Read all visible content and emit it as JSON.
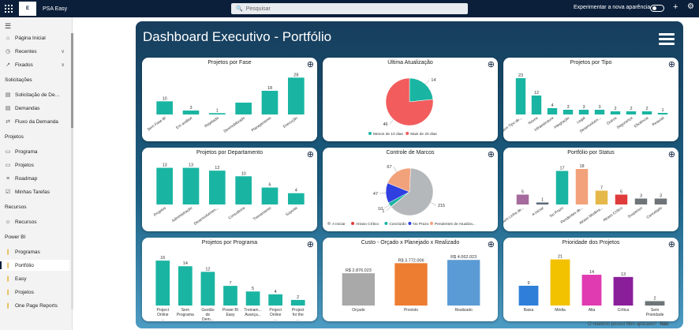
{
  "topbar": {
    "app_name": "PSA Easy",
    "search_placeholder": "Pesquisar",
    "experiment_label": "Experimentar a nova aparência"
  },
  "sidebar": {
    "items_top": [
      {
        "label": "Página Inicial",
        "icon": "home-icon"
      },
      {
        "label": "Recentes",
        "icon": "clock-icon",
        "chevron": true
      },
      {
        "label": "Fixados",
        "icon": "pin-icon",
        "chevron": true
      }
    ],
    "sections": [
      {
        "title": "Solicitações",
        "items": [
          {
            "label": "Solicitação de De...",
            "icon": "doc-icon"
          },
          {
            "label": "Demandas",
            "icon": "doc-icon"
          },
          {
            "label": "Fluxo da Demanda",
            "icon": "flow-icon"
          }
        ]
      },
      {
        "title": "Projetos",
        "items": [
          {
            "label": "Programa",
            "icon": "folder-icon"
          },
          {
            "label": "Projetos",
            "icon": "folder-icon"
          },
          {
            "label": "Roadmap",
            "icon": "roadmap-icon"
          },
          {
            "label": "Minhas Tarefas",
            "icon": "task-icon"
          }
        ]
      },
      {
        "title": "Recursos",
        "items": [
          {
            "label": "Recursos",
            "icon": "people-icon"
          }
        ]
      },
      {
        "title": "Power BI",
        "items": [
          {
            "label": "Programas",
            "icon": "powerbi-icon"
          },
          {
            "label": "Portfólio",
            "icon": "powerbi-icon",
            "selected": true
          },
          {
            "label": "Easy",
            "icon": "powerbi-icon"
          },
          {
            "label": "Projetos",
            "icon": "powerbi-icon"
          },
          {
            "label": "One Page Reports",
            "icon": "powerbi-icon"
          }
        ]
      }
    ]
  },
  "dashboard": {
    "title": "Dashboard Executivo - Portfólio"
  },
  "footer": {
    "question": "O relatório possui filtro aplicado?",
    "answer": "Não"
  },
  "charts": [
    {
      "id": "fase",
      "type": "bar",
      "title": "Projetos por Fase",
      "color": "#1ab5a2",
      "categories": [
        "Sem Fase BI",
        "Em análise",
        "Rejeitada",
        "Desmobilizado",
        "Planejamento",
        "Execução"
      ],
      "values": [
        10,
        3,
        1,
        9,
        18,
        28
      ],
      "show_value": [
        true,
        true,
        true,
        false,
        true,
        true
      ],
      "ymax": 30
    },
    {
      "id": "atualizacao",
      "type": "pie",
      "title": "Última Atualização",
      "slices": [
        {
          "label": "Menos de 10 dias",
          "value": 14,
          "color": "#1ab5a2"
        },
        {
          "label": "Mais de 20 dias",
          "value": 46,
          "color": "#f25c5c"
        }
      ]
    },
    {
      "id": "tipo",
      "type": "bar",
      "title": "Projetos por Tipo",
      "color": "#1ab5a2",
      "categories": [
        "Sem Tipo de...",
        "Novos",
        "Infraestrutura",
        "Integração",
        "Legal",
        "Desenvolvim...",
        "Outros",
        "Segurança",
        "Eficiência",
        "Pessoal"
      ],
      "values": [
        23,
        12,
        4,
        3,
        3,
        3,
        2,
        2,
        2,
        1
      ],
      "ymax": 25
    },
    {
      "id": "departamento",
      "type": "bar",
      "title": "Projetos por Departamento",
      "color": "#1ab5a2",
      "categories": [
        "Projetos",
        "Administração",
        "Desenvolvimen...",
        "Consultoria",
        "Treinamento",
        "Suporte"
      ],
      "values": [
        13,
        13,
        12,
        10,
        6,
        4
      ],
      "ymax": 14
    },
    {
      "id": "marcos",
      "type": "pie",
      "title": "Controle de Marcos",
      "slices": [
        {
          "label": "A iniciar",
          "value": 215,
          "color": "#b5b8bb"
        },
        {
          "label": "Atraso Crítico",
          "value": 1,
          "color": "#e03b3b"
        },
        {
          "label": "Concluído",
          "value": 10,
          "color": "#1ab5a2"
        },
        {
          "label": "No Prazo",
          "value": 47,
          "color": "#2f3fe0"
        },
        {
          "label": "Pendentes de Atualiza...",
          "value": 67,
          "color": "#f2a27a"
        }
      ]
    },
    {
      "id": "status",
      "type": "bar",
      "title": "Portfólio por Status",
      "multicolor": true,
      "categories": [
        "Sem Linha de...",
        "A iniciar",
        "No Prazo",
        "Pendentes de...",
        "Atraso Modera...",
        "Atraso Crítico",
        "Suspenso",
        "Cancelado"
      ],
      "values": [
        5,
        1,
        17,
        18,
        7,
        5,
        3,
        3
      ],
      "colors": [
        "#a56b9c",
        "#5a6a7a",
        "#1ab5a2",
        "#f2a27a",
        "#e5b84a",
        "#e03b3b",
        "#6e7478",
        "#6e7478"
      ],
      "ymax": 20
    },
    {
      "id": "programa",
      "type": "bar",
      "title": "Projetos por Programa",
      "color": "#1ab5a2",
      "wrap_labels": true,
      "categories": [
        "Project Online ...",
        "Sem Programa",
        "Gestão de Dem...",
        "Power BI Easy",
        "Treinam... Avança...",
        "Project Online ...",
        "Project for the ..."
      ],
      "values": [
        16,
        14,
        12,
        7,
        5,
        4,
        2
      ],
      "ymax": 18
    },
    {
      "id": "custo",
      "type": "bar",
      "title": "Custo - Orçado x Planejado x Realizado",
      "multicolor": true,
      "money": true,
      "categories": [
        "Orçado",
        "Previsto",
        "Realizado"
      ],
      "values": [
        2876023,
        3772006,
        4062023
      ],
      "value_labels": [
        "R$ 2.876.023",
        "R$ 3.772.006",
        "R$ 4.062.023"
      ],
      "colors": [
        "#a9a9a9",
        "#ed7d31",
        "#5b9bd5"
      ],
      "ymax": 4500000
    },
    {
      "id": "prioridade",
      "type": "bar",
      "title": "Prioridade dos Projetos",
      "multicolor": true,
      "wrap_labels": true,
      "categories": [
        "Baixa",
        "Média",
        "Alta",
        "Crítica",
        "Sem Prioridade"
      ],
      "values": [
        9,
        21,
        14,
        13,
        2
      ],
      "colors": [
        "#2f7fd9",
        "#f2c200",
        "#e03bb0",
        "#8a1f9a",
        "#6e7478"
      ],
      "ymax": 23
    }
  ]
}
